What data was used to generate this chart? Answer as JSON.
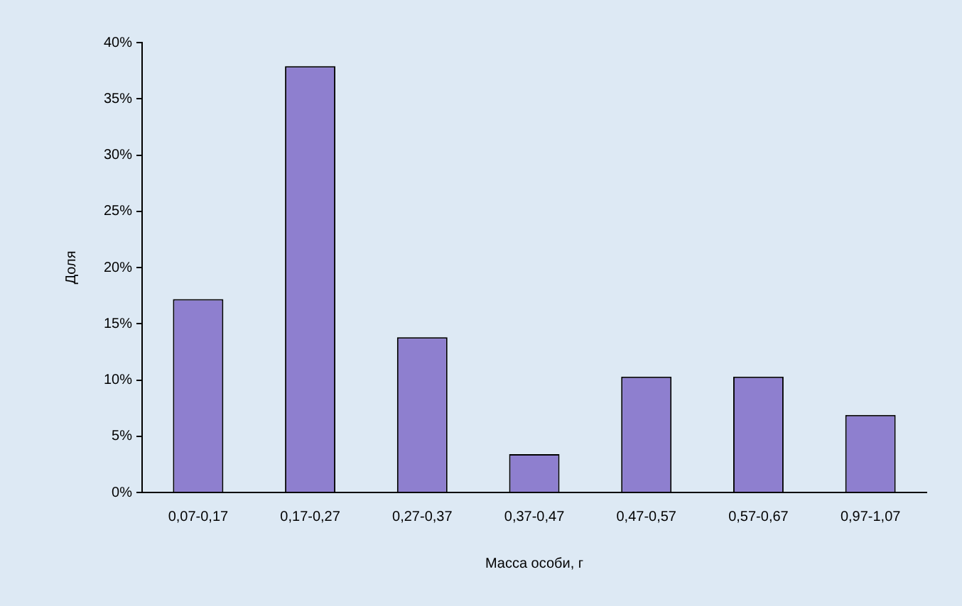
{
  "chart_data": {
    "type": "bar",
    "xlabel": "Масса особи, г",
    "ylabel": "Доля",
    "categories": [
      "0,07-0,17",
      "0,17-0,27",
      "0,27-0,37",
      "0,37-0,47",
      "0,47-0,57",
      "0,57-0,67",
      "0,97-1,07"
    ],
    "values": [
      17.2,
      37.9,
      13.8,
      3.4,
      10.3,
      10.3,
      6.9
    ],
    "color": "#8e7fcf",
    "ylim": [
      0,
      40
    ],
    "yticks": [
      {
        "value": 0,
        "label": "0%"
      },
      {
        "value": 5,
        "label": "5%"
      },
      {
        "value": 10,
        "label": "10%"
      },
      {
        "value": 15,
        "label": "15%"
      },
      {
        "value": 20,
        "label": "20%"
      },
      {
        "value": 25,
        "label": "25%"
      },
      {
        "value": 30,
        "label": "30%"
      },
      {
        "value": 35,
        "label": "35%"
      },
      {
        "value": 40,
        "label": "40%"
      }
    ],
    "grid": false,
    "legend": false
  }
}
